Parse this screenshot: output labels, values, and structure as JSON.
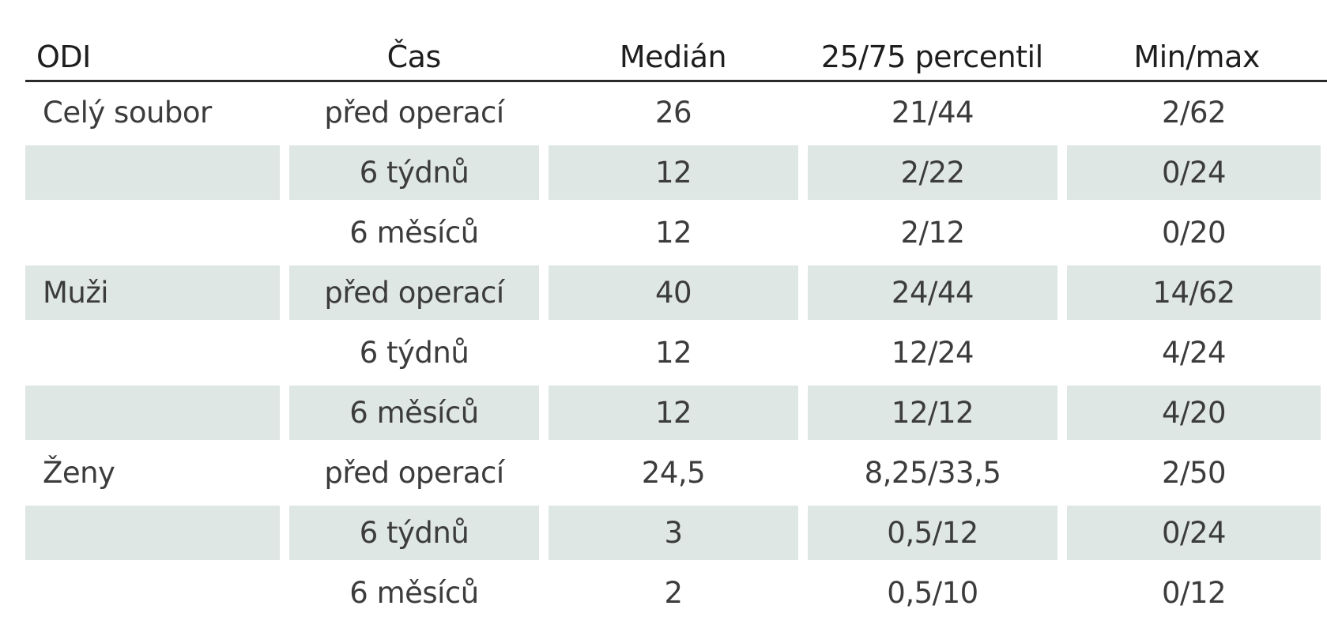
{
  "table": {
    "headers": [
      "ODI",
      "Čas",
      "Medián",
      "25/75 percentil",
      "Min/max"
    ],
    "rows": [
      [
        "Celý soubor",
        "před operací",
        "26",
        "21/44",
        "2/62"
      ],
      [
        "",
        "6 týdnů",
        "12",
        "2/22",
        "0/24"
      ],
      [
        "",
        "6 měsíců",
        "12",
        "2/12",
        "0/20"
      ],
      [
        "Muži",
        "před operací",
        "40",
        "24/44",
        "14/62"
      ],
      [
        "",
        "6 týdnů",
        "12",
        "12/24",
        "4/24"
      ],
      [
        "",
        "6 měsíců",
        "12",
        "12/12",
        "4/20"
      ],
      [
        "Ženy",
        "před operací",
        "24,5",
        "8,25/33,5",
        "2/50"
      ],
      [
        "",
        "6 týdnů",
        "3",
        "0,5/12",
        "0/24"
      ],
      [
        "",
        "6 měsíců",
        "2",
        "0,5/10",
        "0/12"
      ]
    ],
    "shaded_rows": [
      1,
      3,
      5,
      7
    ],
    "colors": {
      "shade": "#dfe7e5",
      "text": "#3c3c3c",
      "rule": "#2a2a2a"
    }
  }
}
